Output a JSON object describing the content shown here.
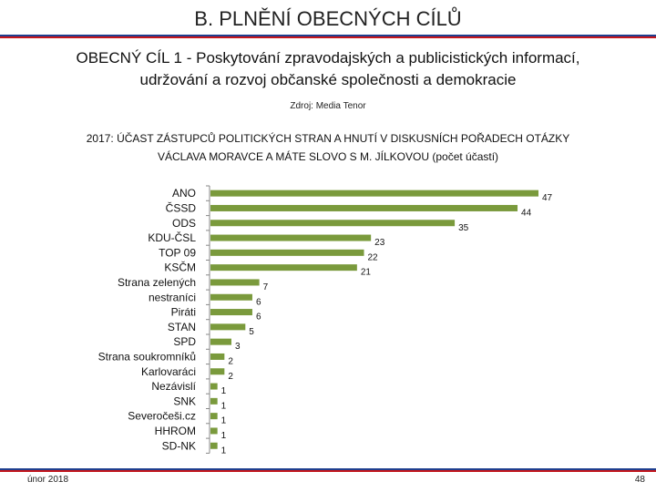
{
  "slide": {
    "title": "B. PLNĚNÍ OBECNÝCH CÍLŮ",
    "goal_line1": "OBECNÝ CÍL 1 - Poskytování zpravodajských a publicistických informací,",
    "goal_line2": "udržování a rozvoj občanské společnosti a demokracie",
    "source": "Zdroj: Media Tenor",
    "footer_date": "únor 2018",
    "page_number": "48"
  },
  "colors": {
    "bar": "#7a9a3c",
    "rule_blue": "#1f3f8f",
    "rule_red": "#c4161c"
  },
  "chart_data": {
    "type": "bar",
    "orientation": "horizontal",
    "title_line1": "2017: ÚČAST ZÁSTUPCŮ POLITICKÝCH STRAN A HNUTÍ V DISKUSNÍCH POŘADECH OTÁZKY",
    "title_line2": "VÁCLAVA MORAVCE A MÁTE SLOVO S M. JÍLKOVOU (počet účastí)",
    "categories": [
      "ANO",
      "ČSSD",
      "ODS",
      "KDU-ČSL",
      "TOP 09",
      "KSČM",
      "Strana zelených",
      "nestraníci",
      "Piráti",
      "STAN",
      "SPD",
      "Strana soukromníků",
      "Karlovaráci",
      "Nezávislí",
      "SNK",
      "Severočeši.cz",
      "HHROM",
      "SD-NK"
    ],
    "values": [
      47,
      44,
      35,
      23,
      22,
      21,
      7,
      6,
      6,
      5,
      3,
      2,
      2,
      1,
      1,
      1,
      1,
      1
    ],
    "xlim": [
      0,
      47
    ],
    "grid": false,
    "data_labels": true
  }
}
